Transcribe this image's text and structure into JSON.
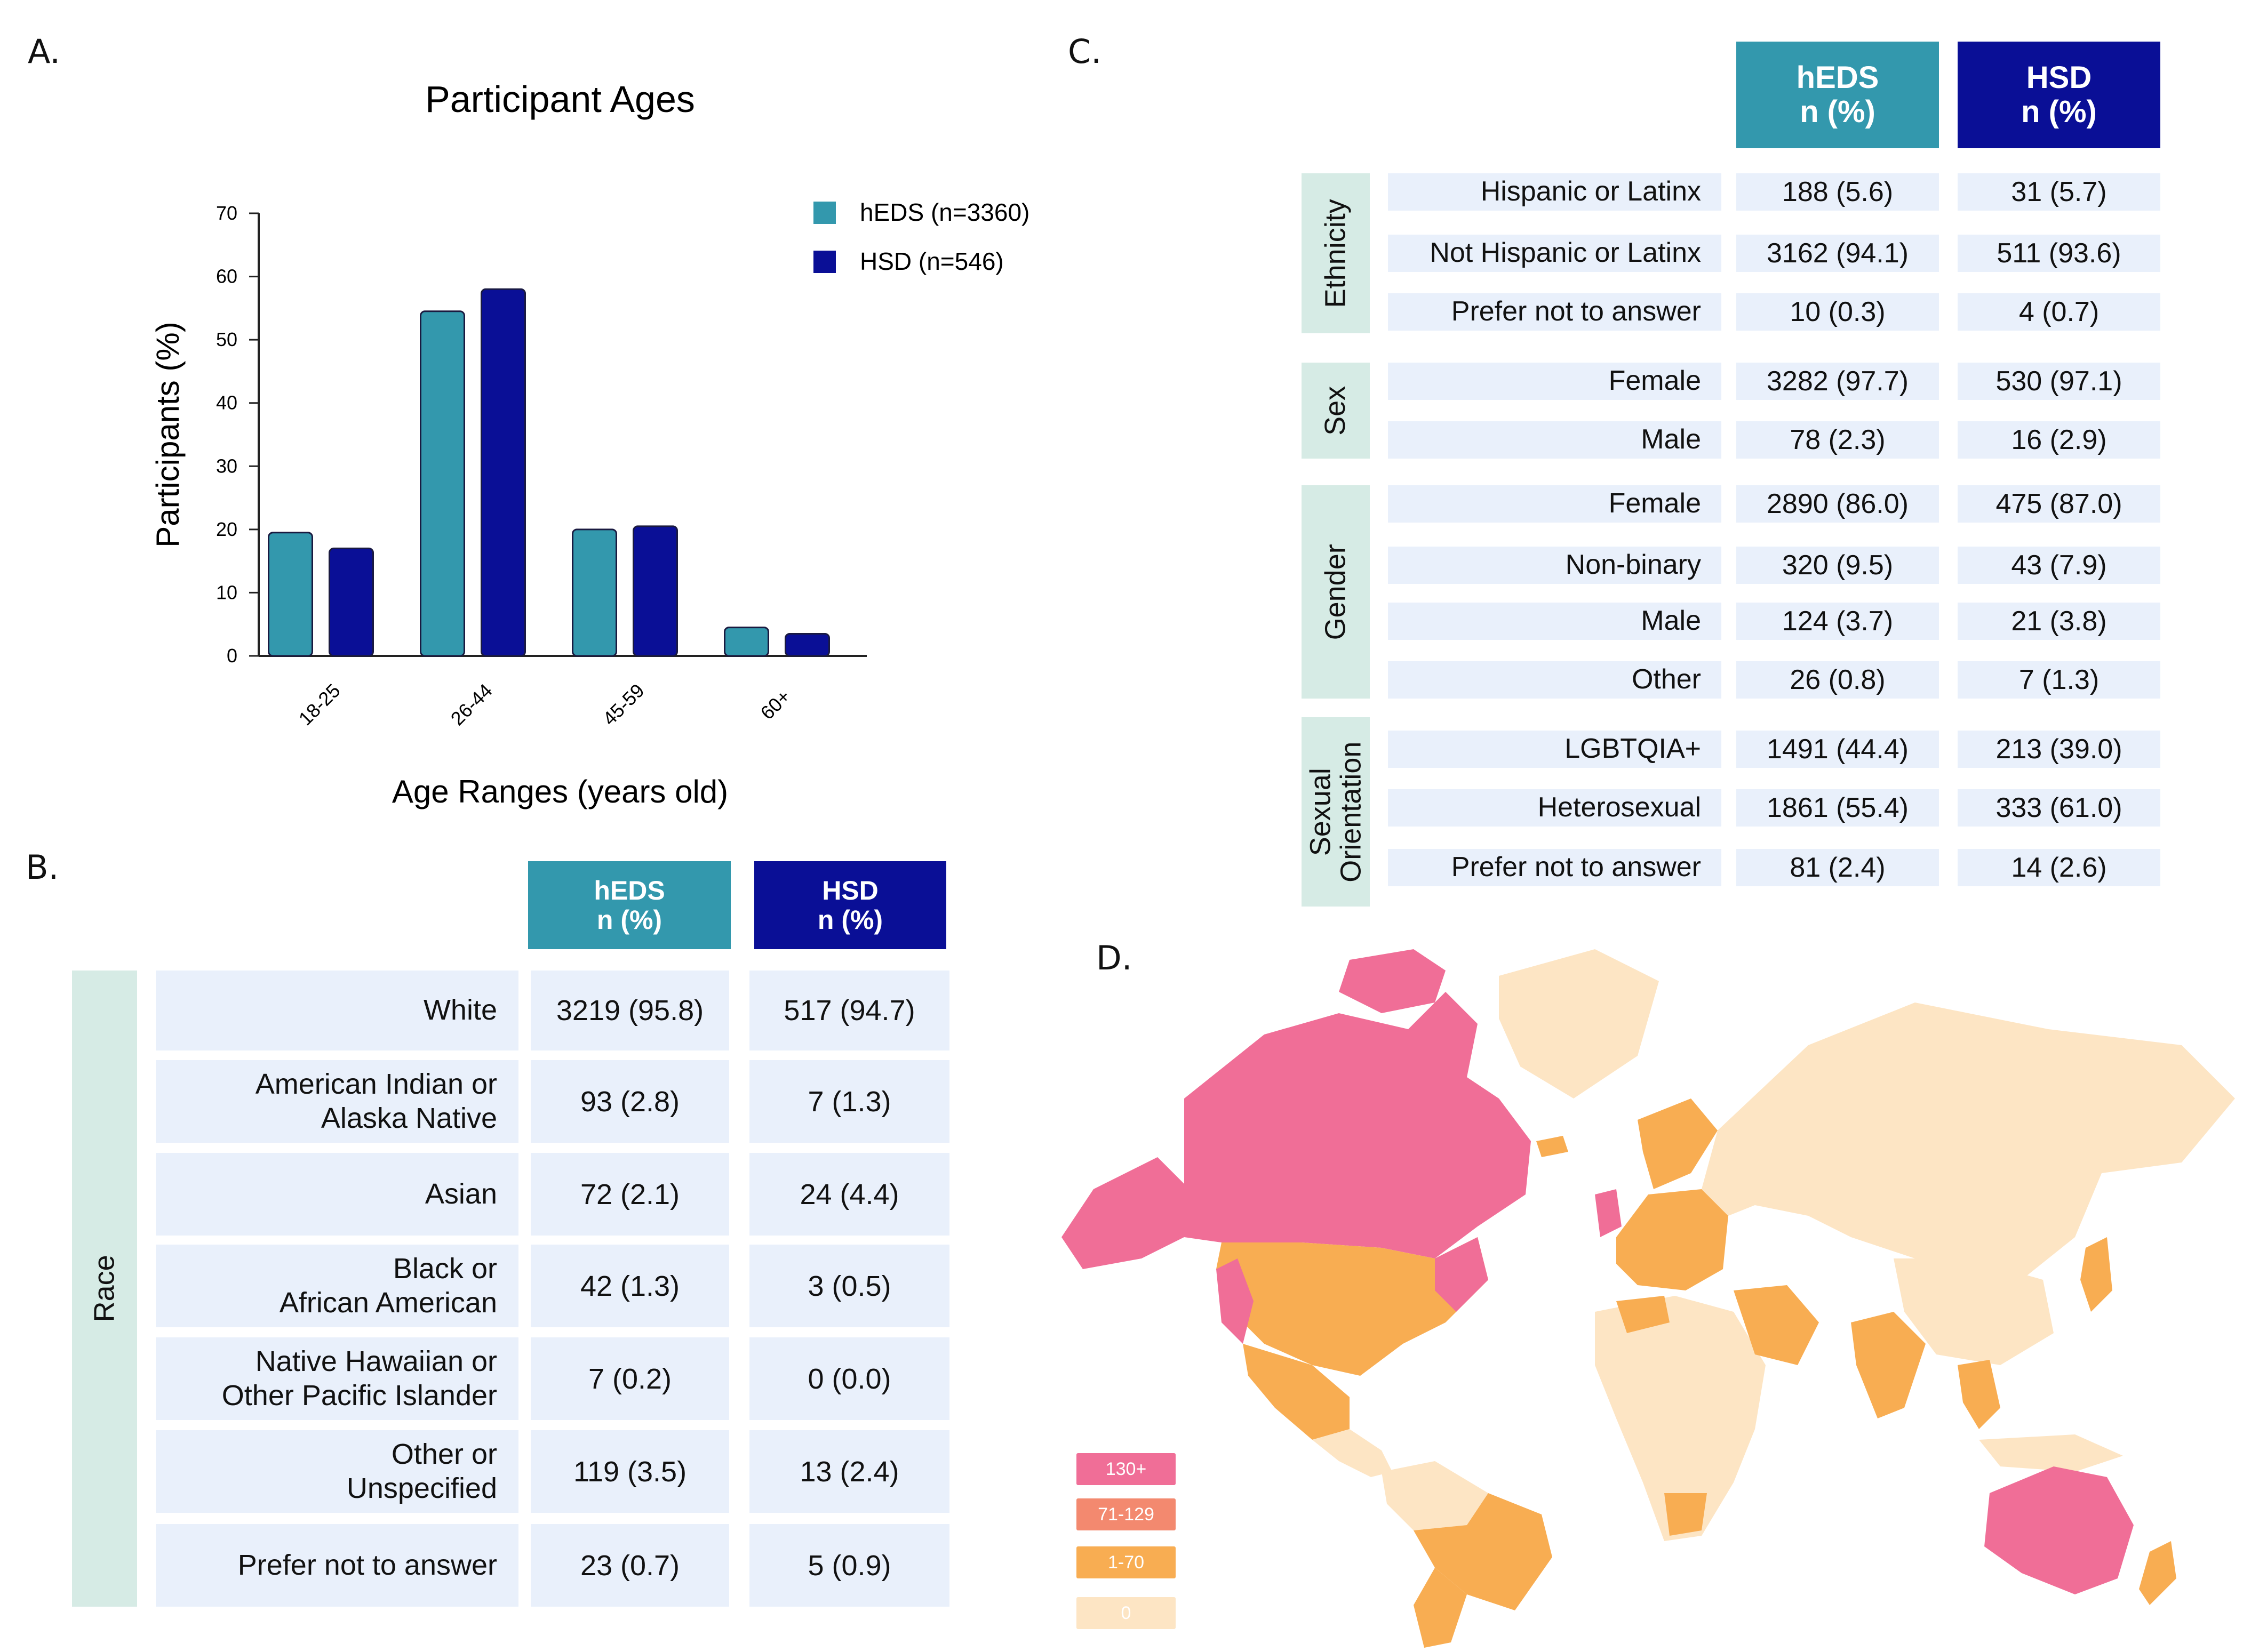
{
  "colors": {
    "heds": "#3398ad",
    "hsd": "#0a0f96",
    "row_bg": "#e9f0fb",
    "group_bg": "#d6ebe5",
    "map_130": "#f06e97",
    "map_71": "#f3896f",
    "map_1": "#f8ad52",
    "map_0": "#fde5c4"
  },
  "panels": {
    "a": "A.",
    "b": "B.",
    "c": "C.",
    "d": "D."
  },
  "chart_data": {
    "type": "bar",
    "title": "Participant Ages",
    "xlabel": "Age Ranges (years old)",
    "ylabel": "Participants (%)",
    "ylim": [
      0,
      70
    ],
    "yticks": [
      0,
      10,
      20,
      30,
      40,
      50,
      60,
      70
    ],
    "categories": [
      "18-25",
      "26-44",
      "45-59",
      "60+"
    ],
    "series": [
      {
        "name": "hEDS (n=3360)",
        "values": [
          19.5,
          54.5,
          20,
          4.5
        ]
      },
      {
        "name": "HSD (n=546)",
        "values": [
          17,
          58,
          20.5,
          3.5
        ]
      }
    ],
    "legend": "top-right"
  },
  "table_b": {
    "headers": [
      [
        "hEDS",
        "n (%)"
      ],
      [
        "HSD",
        "n (%)"
      ]
    ],
    "group": "Race",
    "rows": [
      {
        "label": [
          "White"
        ],
        "heds": "3219 (95.8)",
        "hsd": "517 (94.7)"
      },
      {
        "label": [
          "American Indian or",
          "Alaska Native"
        ],
        "heds": "93 (2.8)",
        "hsd": "7 (1.3)"
      },
      {
        "label": [
          "Asian"
        ],
        "heds": "72 (2.1)",
        "hsd": "24 (4.4)"
      },
      {
        "label": [
          "Black or",
          "African American"
        ],
        "heds": "42 (1.3)",
        "hsd": "3 (0.5)"
      },
      {
        "label": [
          "Native Hawaiian or",
          "Other Pacific Islander"
        ],
        "heds": "7 (0.2)",
        "hsd": "0 (0.0)"
      },
      {
        "label": [
          "Other or",
          "Unspecified"
        ],
        "heds": "119 (3.5)",
        "hsd": "13 (2.4)"
      },
      {
        "label": [
          "Prefer not to answer"
        ],
        "heds": "23 (0.7)",
        "hsd": "5 (0.9)"
      }
    ]
  },
  "table_c": {
    "headers": [
      [
        "hEDS",
        "n (%)"
      ],
      [
        "HSD",
        "n (%)"
      ]
    ],
    "groups": [
      {
        "name": [
          "Ethnicity"
        ],
        "rows": [
          {
            "label": "Hispanic or Latinx",
            "heds": "188 (5.6)",
            "hsd": "31 (5.7)"
          },
          {
            "label": "Not Hispanic or Latinx",
            "heds": "3162 (94.1)",
            "hsd": "511 (93.6)"
          },
          {
            "label": "Prefer not to answer",
            "heds": "10 (0.3)",
            "hsd": "4 (0.7)"
          }
        ]
      },
      {
        "name": [
          "Sex"
        ],
        "rows": [
          {
            "label": "Female",
            "heds": "3282 (97.7)",
            "hsd": "530 (97.1)"
          },
          {
            "label": "Male",
            "heds": "78 (2.3)",
            "hsd": "16 (2.9)"
          }
        ]
      },
      {
        "name": [
          "Gender"
        ],
        "rows": [
          {
            "label": "Female",
            "heds": "2890 (86.0)",
            "hsd": "475 (87.0)"
          },
          {
            "label": "Non-binary",
            "heds": "320 (9.5)",
            "hsd": "43 (7.9)"
          },
          {
            "label": "Male",
            "heds": "124 (3.7)",
            "hsd": "21 (3.8)"
          },
          {
            "label": "Other",
            "heds": "26 (0.8)",
            "hsd": "7 (1.3)"
          }
        ]
      },
      {
        "name": [
          "Sexual",
          "Orientation"
        ],
        "rows": [
          {
            "label": "LGBTQIA+",
            "heds": "1491 (44.4)",
            "hsd": "213 (39.0)"
          },
          {
            "label": "Heterosexual",
            "heds": "1861 (55.4)",
            "hsd": "333 (61.0)"
          },
          {
            "label": "Prefer not to answer",
            "heds": "81 (2.4)",
            "hsd": "14 (2.6)"
          }
        ]
      }
    ]
  },
  "map": {
    "legend": [
      "130+",
      "71-129",
      "1-70",
      "0"
    ]
  }
}
